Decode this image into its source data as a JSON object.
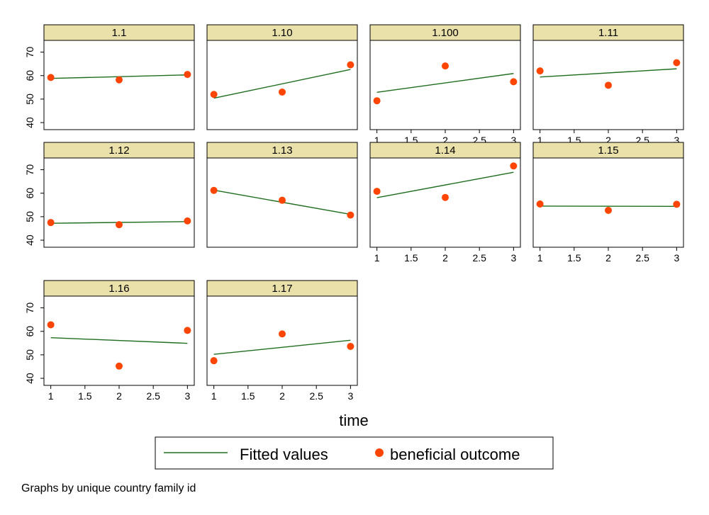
{
  "chart_data": {
    "type": "scatter",
    "xlabel": "time",
    "note": "Graphs by unique country family id",
    "ylim": [
      37,
      75
    ],
    "yticks": [
      40,
      50,
      60,
      70
    ],
    "xlim": [
      0.9,
      3.1
    ],
    "xticks": [
      "1",
      "1.5",
      "2",
      "2.5",
      "3"
    ],
    "legend": {
      "placement": "bottom",
      "entries": [
        {
          "name": "Fitted values",
          "kind": "line",
          "color": "#1f6e1f"
        },
        {
          "name": "beneficial outcome",
          "kind": "marker",
          "color": "#ff4500"
        }
      ]
    },
    "panels": [
      {
        "title": "1.1",
        "x": [
          1,
          2,
          3
        ],
        "y": [
          59.2,
          58.2,
          60.5
        ],
        "fit": [
          58.8,
          60.3
        ]
      },
      {
        "title": "1.10",
        "x": [
          1,
          2,
          3
        ],
        "y": [
          52.0,
          53.0,
          64.6
        ],
        "fit": [
          50.4,
          62.6
        ]
      },
      {
        "title": "1.100",
        "x": [
          1,
          2,
          3
        ],
        "y": [
          49.3,
          64.1,
          57.4
        ],
        "fit": [
          52.9,
          60.9
        ]
      },
      {
        "title": "1.11",
        "x": [
          1,
          2,
          3
        ],
        "y": [
          62.0,
          55.9,
          65.5
        ],
        "fit": [
          59.4,
          62.9
        ]
      },
      {
        "title": "1.12",
        "x": [
          1,
          2,
          3
        ],
        "y": [
          47.5,
          46.6,
          48.2
        ],
        "fit": [
          47.2,
          47.9
        ]
      },
      {
        "title": "1.13",
        "x": [
          1,
          2,
          3
        ],
        "y": [
          61.2,
          57.0,
          50.7
        ],
        "fit": [
          61.3,
          51.0
        ]
      },
      {
        "title": "1.14",
        "x": [
          1,
          2,
          3
        ],
        "y": [
          60.8,
          58.2,
          71.6
        ],
        "fit": [
          58.1,
          68.9
        ]
      },
      {
        "title": "1.15",
        "x": [
          1,
          2,
          3
        ],
        "y": [
          55.4,
          52.7,
          55.3
        ],
        "fit": [
          54.5,
          54.4
        ]
      },
      {
        "title": "1.16",
        "x": [
          1,
          2,
          3
        ],
        "y": [
          62.8,
          45.2,
          60.4
        ],
        "fit": [
          57.3,
          54.9
        ]
      },
      {
        "title": "1.17",
        "x": [
          1,
          2,
          3
        ],
        "y": [
          47.5,
          58.9,
          53.6
        ],
        "fit": [
          50.2,
          56.2
        ]
      }
    ]
  }
}
